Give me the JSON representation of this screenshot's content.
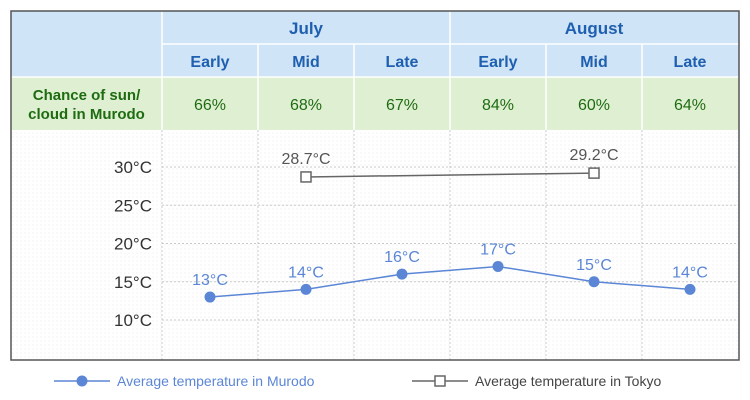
{
  "table": {
    "months": [
      "July",
      "August"
    ],
    "periods": [
      "Early",
      "Mid",
      "Late",
      "Early",
      "Mid",
      "Late"
    ],
    "row_label_line1": "Chance of sun/",
    "row_label_line2": "cloud in Murodo",
    "sun_values": [
      "66%",
      "68%",
      "67%",
      "84%",
      "60%",
      "64%"
    ]
  },
  "colors": {
    "header_bg": "#cfe4f7",
    "header_text": "#1f5fb0",
    "row_bg": "#dff0d2",
    "row_text": "#1e6b12",
    "murodo": "#5b86d6",
    "tokyo": "#666666",
    "grid": "#c8c8c8",
    "border": "#555555"
  },
  "chart_data": {
    "type": "line",
    "categories": [
      "July Early",
      "July Mid",
      "July Late",
      "August Early",
      "August Mid",
      "August Late"
    ],
    "y_tick_labels": [
      "30°C",
      "25°C",
      "20°C",
      "15°C",
      "10°C"
    ],
    "y_ticks": [
      30,
      25,
      20,
      15,
      10
    ],
    "ylim": [
      10,
      30
    ],
    "grid": true,
    "legend_position": "bottom",
    "series": [
      {
        "name": "Average temperature in Murodo",
        "values": [
          13,
          14,
          16,
          17,
          15,
          14
        ],
        "point_labels": [
          "13°C",
          "14°C",
          "16°C",
          "17°C",
          "15°C",
          "14°C"
        ],
        "marker": "circle",
        "color": "#5b86d6"
      },
      {
        "name": "Average temperature in Tokyo",
        "points": [
          {
            "category": "July Mid",
            "value": 28.7,
            "label": "28.7°C"
          },
          {
            "category": "August Mid",
            "value": 29.2,
            "label": "29.2°C"
          }
        ],
        "marker": "square",
        "color": "#666666"
      }
    ]
  }
}
